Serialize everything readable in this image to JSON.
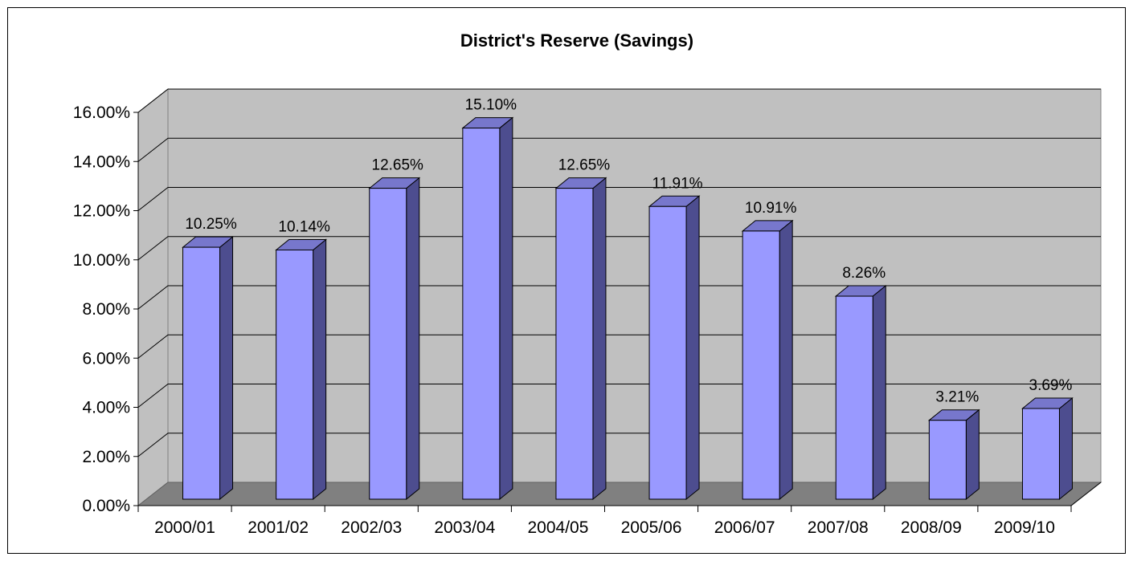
{
  "chart_data": {
    "type": "bar",
    "title": "District's Reserve (Savings)",
    "xlabel": "",
    "ylabel": "",
    "categories": [
      "2000/01",
      "2001/02",
      "2002/03",
      "2003/04",
      "2004/05",
      "2005/06",
      "2006/07",
      "2007/08",
      "2008/09",
      "2009/10"
    ],
    "values": [
      10.25,
      10.14,
      12.65,
      15.1,
      12.65,
      11.91,
      10.91,
      8.26,
      3.21,
      3.69
    ],
    "data_labels": [
      "10.25%",
      "10.14%",
      "12.65%",
      "15.10%",
      "12.65%",
      "11.91%",
      "10.91%",
      "8.26%",
      "3.21%",
      "3.69%"
    ],
    "ylim": [
      0,
      16
    ],
    "y_ticks": [
      0,
      2,
      4,
      6,
      8,
      10,
      12,
      14,
      16
    ],
    "y_tick_labels": [
      "0.00%",
      "2.00%",
      "4.00%",
      "6.00%",
      "8.00%",
      "10.00%",
      "12.00%",
      "14.00%",
      "16.00%"
    ],
    "grid": true,
    "legend": "none",
    "style": "3d-column",
    "colors": {
      "bar_front": "#9999FF",
      "bar_side": "#4D4D8F",
      "bar_top": "#7777CC",
      "wall": "#C0C0C0",
      "floor": "#808080",
      "gridline": "#000000",
      "frame": "#000000"
    }
  }
}
